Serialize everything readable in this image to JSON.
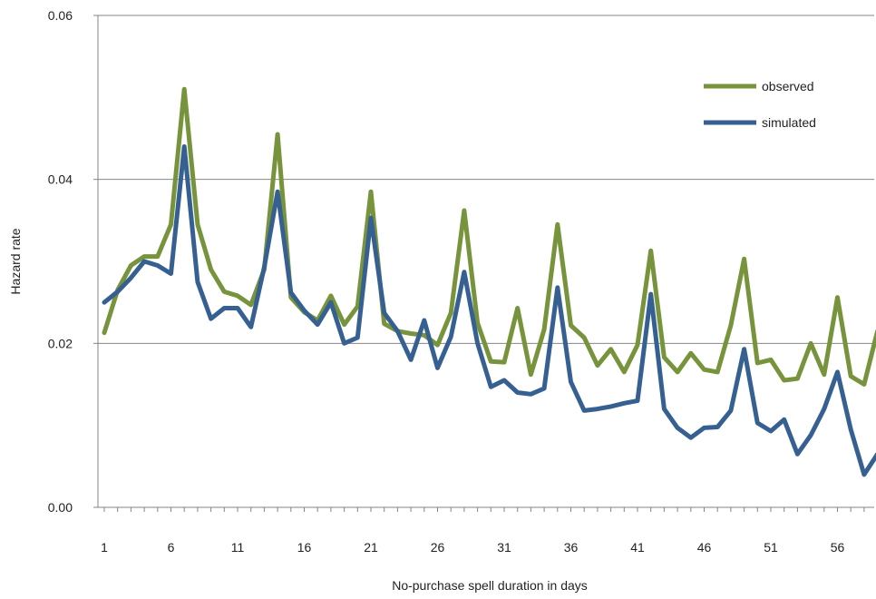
{
  "chart_data": {
    "type": "line",
    "xlabel": "No-purchase spell duration in days",
    "ylabel": "Hazard rate",
    "xlim": [
      1,
      59
    ],
    "ylim": [
      0,
      0.06
    ],
    "yticks": [
      "0.00",
      "0.02",
      "0.04",
      "0.06"
    ],
    "ytick_values": [
      0,
      0.02,
      0.04,
      0.06
    ],
    "xticks": [
      "1",
      "6",
      "11",
      "16",
      "21",
      "26",
      "31",
      "36",
      "41",
      "46",
      "51",
      "56"
    ],
    "xtick_values": [
      1,
      6,
      11,
      16,
      21,
      26,
      31,
      36,
      41,
      46,
      51,
      56
    ],
    "grid": "horizontal",
    "legend_position": "top-right",
    "x": [
      1,
      2,
      3,
      4,
      5,
      6,
      7,
      8,
      9,
      10,
      11,
      12,
      13,
      14,
      15,
      16,
      17,
      18,
      19,
      20,
      21,
      22,
      23,
      24,
      25,
      26,
      27,
      28,
      29,
      30,
      31,
      32,
      33,
      34,
      35,
      36,
      37,
      38,
      39,
      40,
      41,
      42,
      43,
      44,
      45,
      46,
      47,
      48,
      49,
      50,
      51,
      52,
      53,
      54,
      55,
      56,
      57,
      58,
      59
    ],
    "series": [
      {
        "name": "observed",
        "color": "#77933c",
        "values": [
          0.0213,
          0.0265,
          0.0295,
          0.0306,
          0.0306,
          0.0345,
          0.051,
          0.0345,
          0.029,
          0.0263,
          0.0258,
          0.0247,
          0.029,
          0.0455,
          0.0256,
          0.0238,
          0.0228,
          0.0258,
          0.0223,
          0.0245,
          0.0385,
          0.0224,
          0.0215,
          0.0212,
          0.021,
          0.0198,
          0.0237,
          0.0362,
          0.0225,
          0.0178,
          0.0177,
          0.0243,
          0.0162,
          0.0217,
          0.0345,
          0.0222,
          0.0207,
          0.0173,
          0.0193,
          0.0165,
          0.0198,
          0.0313,
          0.0183,
          0.0165,
          0.0188,
          0.0168,
          0.0165,
          0.0222,
          0.0303,
          0.0176,
          0.018,
          0.0155,
          0.0157,
          0.02,
          0.0162,
          0.0256,
          0.016,
          0.015,
          0.0215
        ]
      },
      {
        "name": "simulated",
        "color": "#376092",
        "values": [
          0.025,
          0.0263,
          0.028,
          0.03,
          0.0295,
          0.0285,
          0.044,
          0.0275,
          0.023,
          0.0243,
          0.0243,
          0.022,
          0.0293,
          0.0385,
          0.0262,
          0.024,
          0.0223,
          0.025,
          0.02,
          0.0207,
          0.0353,
          0.0237,
          0.0215,
          0.018,
          0.0228,
          0.017,
          0.0208,
          0.0287,
          0.02,
          0.0147,
          0.0155,
          0.014,
          0.0138,
          0.0145,
          0.0268,
          0.0153,
          0.0118,
          0.012,
          0.0123,
          0.0127,
          0.013,
          0.026,
          0.012,
          0.0097,
          0.0085,
          0.0097,
          0.0098,
          0.0118,
          0.0193,
          0.0103,
          0.0093,
          0.0107,
          0.0065,
          0.0088,
          0.012,
          0.0165,
          0.0095,
          0.004,
          0.0065
        ]
      }
    ]
  }
}
